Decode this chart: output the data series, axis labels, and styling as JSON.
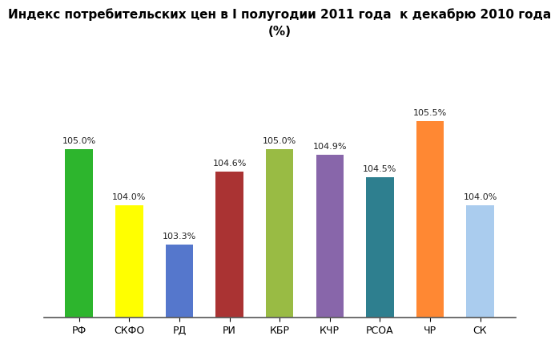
{
  "title": "Индекс потребительских цен в I полугодии 2011 года  к декабрю 2010 года\n(%)",
  "categories": [
    "РФ",
    "СКФО",
    "РД",
    "РИ",
    "КБР",
    "КЧР",
    "РСОА",
    "ЧР",
    "СК"
  ],
  "values": [
    105.0,
    104.0,
    103.3,
    104.6,
    105.0,
    104.9,
    104.5,
    105.5,
    104.0
  ],
  "bar_colors": [
    "#2db52d",
    "#ffff00",
    "#5577cc",
    "#aa3333",
    "#99bb44",
    "#8866aa",
    "#2e7f8f",
    "#ff8833",
    "#aaccee"
  ],
  "value_labels": [
    "105.0%",
    "104.0%",
    "103.3%",
    "104.6%",
    "105.0%",
    "104.9%",
    "104.5%",
    "105.5%",
    "104.0%"
  ],
  "ylim_min": 102.0,
  "ylim_max": 106.8,
  "background_color": "#ffffff",
  "title_fontsize": 11,
  "label_fontsize": 8,
  "tick_fontsize": 9,
  "bar_width": 0.55
}
